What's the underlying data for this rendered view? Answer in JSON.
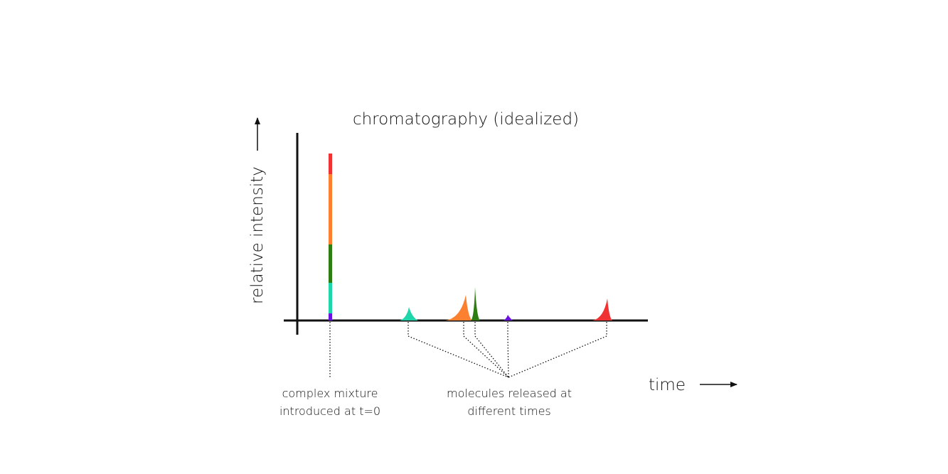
{
  "title": "chromatography (idealized)",
  "axes": {
    "y_label": "relative intensity",
    "x_label": "time"
  },
  "colors": {
    "red": "#f03232",
    "orange": "#fb8030",
    "green": "#2e7d12",
    "teal": "#1ed6aa",
    "purple": "#6a10e0"
  },
  "mixture": {
    "segments": [
      {
        "name": "purple",
        "color": "#6a10e0"
      },
      {
        "name": "teal",
        "color": "#1ed6aa"
      },
      {
        "name": "green",
        "color": "#2e7d12"
      },
      {
        "name": "orange",
        "color": "#fb8030"
      },
      {
        "name": "red",
        "color": "#f03232"
      }
    ],
    "label_line1": "complex mixture",
    "label_line2": "introduced at t=0"
  },
  "peaks": [
    {
      "name": "teal",
      "color": "#1ed6aa"
    },
    {
      "name": "orange",
      "color": "#fb8030"
    },
    {
      "name": "green",
      "color": "#2e7d12"
    },
    {
      "name": "purple",
      "color": "#6a10e0"
    },
    {
      "name": "red",
      "color": "#f03232"
    }
  ],
  "released": {
    "label_line1": "molecules released at",
    "label_line2": "different times"
  }
}
